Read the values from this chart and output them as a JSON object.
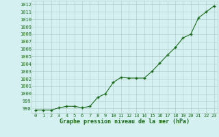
{
  "x": [
    0,
    1,
    2,
    3,
    4,
    5,
    6,
    7,
    8,
    9,
    10,
    11,
    12,
    13,
    14,
    15,
    16,
    17,
    18,
    19,
    20,
    21,
    22,
    23
  ],
  "y": [
    997.8,
    997.8,
    997.8,
    998.1,
    998.3,
    998.3,
    998.1,
    998.3,
    999.5,
    1000.0,
    1001.5,
    1002.2,
    1002.1,
    1002.1,
    1002.1,
    1003.0,
    1004.1,
    1005.2,
    1006.2,
    1007.5,
    1008.0,
    1010.2,
    1011.0,
    1011.8
  ],
  "line_color": "#1a6b1a",
  "marker": "+",
  "marker_size": 3,
  "line_width": 0.8,
  "bg_color": "#d4f0f0",
  "grid_color": "#b0c8c8",
  "ylabel_ticks": [
    998,
    999,
    1000,
    1001,
    1002,
    1003,
    1004,
    1005,
    1006,
    1007,
    1008,
    1009,
    1010,
    1011,
    1012
  ],
  "xlabel": "Graphe pression niveau de la mer (hPa)",
  "ylim": [
    997.4,
    1012.5
  ],
  "xlim": [
    -0.5,
    23.5
  ],
  "tick_fontsize": 5.0,
  "xlabel_fontsize": 6.0
}
